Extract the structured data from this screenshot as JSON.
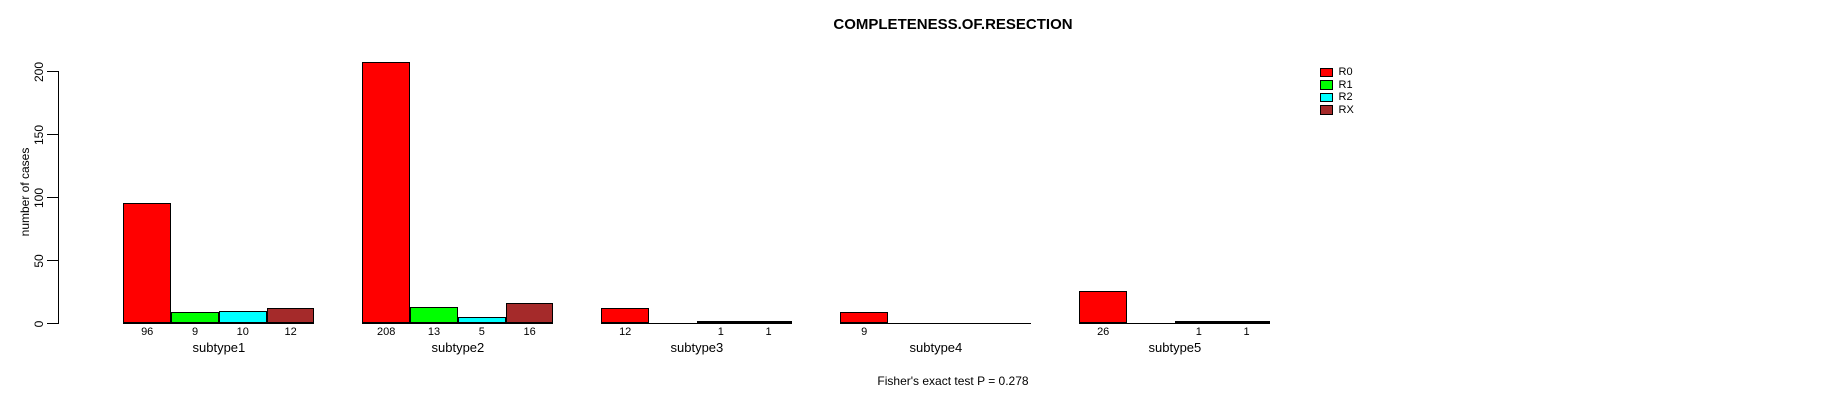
{
  "chart_data": {
    "type": "bar",
    "title": "COMPLETENESS.OF.RESECTION",
    "ylabel": "number of cases",
    "xlabel": "",
    "categories": [
      "subtype1",
      "subtype2",
      "subtype3",
      "subtype4",
      "subtype5"
    ],
    "series": [
      {
        "name": "R0",
        "color": "#FF0000",
        "values": [
          96,
          208,
          12,
          9,
          26
        ]
      },
      {
        "name": "R1",
        "color": "#00FF00",
        "values": [
          9,
          13,
          0,
          0,
          0
        ]
      },
      {
        "name": "R2",
        "color": "#00FFFF",
        "values": [
          10,
          5,
          1,
          0,
          1
        ]
      },
      {
        "name": "RX",
        "color": "#A52A2A",
        "values": [
          12,
          16,
          1,
          0,
          1
        ]
      }
    ],
    "bar_value_labels": [
      [
        "96",
        "9",
        "10",
        "12"
      ],
      [
        "208",
        "13",
        "5",
        "16"
      ],
      [
        "12",
        "",
        "1",
        "1"
      ],
      [
        "9",
        "",
        "",
        ""
      ],
      [
        "26",
        "",
        "1",
        "1"
      ]
    ],
    "yticks": [
      0,
      50,
      100,
      150,
      200
    ],
    "ylim": [
      0,
      208
    ],
    "grid": false,
    "legend_position": "top-right",
    "note": "Fisher's exact test P = 0.278",
    "background_color": "#FFFFFF",
    "axis_color": "#000000"
  }
}
